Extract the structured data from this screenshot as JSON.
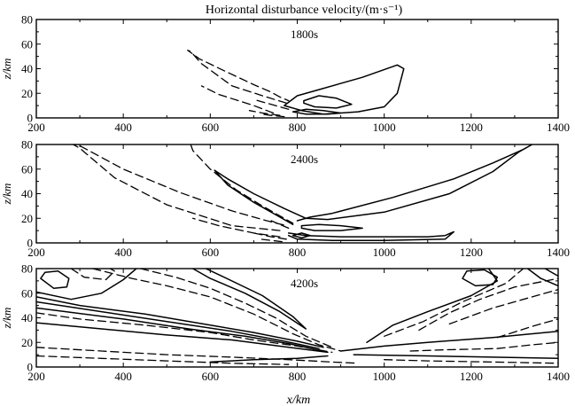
{
  "chart_data": [
    {
      "type": "contour",
      "title": "Horizontal disturbance velocity/(m·s⁻¹)",
      "label": "1800s",
      "xlabel": "",
      "ylabel": "z/km",
      "xlim": [
        200,
        1400
      ],
      "ylim": [
        0,
        80
      ],
      "xticks": [
        200,
        400,
        600,
        800,
        1000,
        1200,
        1400
      ],
      "yticks": [
        0,
        20,
        40,
        60,
        80
      ],
      "solid_contours": [
        [
          [
            770,
            10
          ],
          [
            800,
            18
          ],
          [
            850,
            23
          ],
          [
            950,
            33
          ],
          [
            1030,
            43
          ],
          [
            1045,
            40
          ],
          [
            1030,
            20
          ],
          [
            1000,
            9
          ],
          [
            940,
            5
          ],
          [
            860,
            3
          ],
          [
            810,
            6
          ],
          [
            780,
            9
          ],
          [
            770,
            10
          ]
        ],
        [
          [
            815,
            12
          ],
          [
            840,
            9
          ],
          [
            890,
            8
          ],
          [
            925,
            11
          ],
          [
            890,
            16
          ],
          [
            850,
            18
          ],
          [
            815,
            14
          ],
          [
            815,
            12
          ]
        ],
        [
          [
            790,
            5
          ],
          [
            820,
            3
          ],
          [
            870,
            3
          ],
          [
            900,
            4
          ],
          [
            860,
            6
          ],
          [
            820,
            7
          ],
          [
            790,
            5
          ]
        ]
      ],
      "dashed_contours": [
        [
          [
            775,
            12
          ],
          [
            720,
            18
          ],
          [
            650,
            26
          ],
          [
            580,
            44
          ],
          [
            555,
            54
          ],
          [
            548,
            55
          ],
          [
            575,
            48
          ],
          [
            640,
            37
          ],
          [
            700,
            27
          ],
          [
            740,
            21
          ],
          [
            760,
            17
          ],
          [
            780,
            14
          ]
        ],
        [
          [
            745,
            4
          ],
          [
            700,
            10
          ],
          [
            620,
            19
          ],
          [
            580,
            26
          ]
        ],
        [
          [
            780,
            7
          ],
          [
            750,
            10
          ],
          [
            720,
            13
          ],
          [
            700,
            15
          ]
        ],
        [
          [
            760,
            2
          ],
          [
            720,
            4
          ],
          [
            690,
            6
          ]
        ],
        [
          [
            770,
            1
          ],
          [
            740,
            2
          ],
          [
            720,
            3
          ]
        ]
      ]
    },
    {
      "type": "contour",
      "label": "2400s",
      "xlabel": "",
      "ylabel": "z/km",
      "xlim": [
        200,
        1400
      ],
      "ylim": [
        0,
        80
      ],
      "xticks": [
        200,
        400,
        600,
        800,
        1000,
        1200,
        1400
      ],
      "yticks": [
        0,
        20,
        40,
        60,
        80
      ],
      "solid_contours": [
        [
          [
            790,
            15
          ],
          [
            750,
            23
          ],
          [
            700,
            33
          ],
          [
            640,
            47
          ],
          [
            610,
            59
          ],
          [
            640,
            52
          ],
          [
            700,
            40
          ],
          [
            770,
            28
          ],
          [
            820,
            20
          ],
          [
            870,
            19
          ],
          [
            1000,
            25
          ],
          [
            1150,
            40
          ],
          [
            1250,
            58
          ],
          [
            1310,
            74
          ],
          [
            1340,
            80
          ],
          [
            1320,
            76
          ],
          [
            1250,
            65
          ],
          [
            1160,
            52
          ],
          [
            1020,
            37
          ],
          [
            880,
            24
          ],
          [
            830,
            21
          ],
          [
            800,
            18
          ]
        ],
        [
          [
            810,
            12
          ],
          [
            840,
            10
          ],
          [
            900,
            10
          ],
          [
            950,
            12
          ],
          [
            900,
            14
          ],
          [
            850,
            15
          ],
          [
            810,
            14
          ],
          [
            810,
            12
          ]
        ],
        [
          [
            780,
            8
          ],
          [
            820,
            6
          ],
          [
            900,
            5
          ],
          [
            1000,
            5
          ],
          [
            1100,
            5
          ],
          [
            1140,
            6
          ],
          [
            1160,
            9
          ],
          [
            1140,
            3
          ],
          [
            1000,
            2
          ],
          [
            880,
            2
          ],
          [
            800,
            3
          ],
          [
            780,
            6
          ]
        ],
        [
          [
            790,
            6
          ],
          [
            810,
            4
          ],
          [
            830,
            6
          ],
          [
            810,
            8
          ],
          [
            790,
            6
          ]
        ]
      ],
      "dashed_contours": [
        [
          [
            760,
            10
          ],
          [
            650,
            14
          ],
          [
            500,
            31
          ],
          [
            380,
            53
          ],
          [
            300,
            77
          ],
          [
            285,
            80
          ],
          [
            300,
            79
          ],
          [
            400,
            60
          ],
          [
            530,
            41
          ],
          [
            650,
            26
          ],
          [
            730,
            18
          ],
          [
            775,
            14
          ]
        ],
        [
          [
            555,
            80
          ],
          [
            560,
            75
          ],
          [
            600,
            60
          ],
          [
            660,
            43
          ],
          [
            720,
            30
          ],
          [
            770,
            20
          ],
          [
            790,
            16
          ]
        ],
        [
          [
            760,
            5
          ],
          [
            700,
            8
          ],
          [
            620,
            14
          ],
          [
            560,
            20
          ]
        ],
        [
          [
            775,
            3
          ],
          [
            740,
            5
          ],
          [
            700,
            8
          ]
        ],
        [
          [
            780,
            12
          ],
          [
            760,
            15
          ],
          [
            740,
            18
          ]
        ],
        [
          [
            765,
            1
          ],
          [
            740,
            2
          ],
          [
            715,
            3
          ]
        ]
      ]
    },
    {
      "type": "contour",
      "label": "4200s",
      "xlabel": "x/km",
      "ylabel": "z/km",
      "xlim": [
        200,
        1400
      ],
      "ylim": [
        0,
        80
      ],
      "xticks": [
        200,
        400,
        600,
        800,
        1000,
        1200,
        1400
      ],
      "yticks": [
        0,
        20,
        40,
        60,
        80
      ],
      "solid_contours": [
        [
          [
            210,
            72
          ],
          [
            240,
            64
          ],
          [
            270,
            65
          ],
          [
            275,
            72
          ],
          [
            250,
            78
          ],
          [
            220,
            77
          ],
          [
            210,
            72
          ]
        ],
        [
          [
            200,
            61
          ],
          [
            280,
            55
          ],
          [
            350,
            60
          ],
          [
            400,
            71
          ],
          [
            430,
            80
          ]
        ],
        [
          [
            200,
            57
          ],
          [
            300,
            50
          ],
          [
            450,
            43
          ],
          [
            600,
            34
          ],
          [
            700,
            28
          ],
          [
            800,
            21
          ],
          [
            860,
            16
          ]
        ],
        [
          [
            200,
            53
          ],
          [
            350,
            45
          ],
          [
            500,
            37
          ],
          [
            650,
            29
          ],
          [
            770,
            21
          ],
          [
            850,
            15
          ]
        ],
        [
          [
            200,
            48
          ],
          [
            400,
            39
          ],
          [
            550,
            31
          ],
          [
            680,
            25
          ],
          [
            780,
            19
          ],
          [
            860,
            13
          ]
        ],
        [
          [
            200,
            36
          ],
          [
            350,
            31
          ],
          [
            500,
            26
          ],
          [
            650,
            22
          ],
          [
            780,
            16
          ],
          [
            870,
            12
          ]
        ],
        [
          [
            560,
            80
          ],
          [
            600,
            72
          ],
          [
            680,
            60
          ],
          [
            760,
            45
          ],
          [
            820,
            31
          ],
          [
            790,
            41
          ],
          [
            720,
            58
          ],
          [
            620,
            75
          ],
          [
            590,
            80
          ]
        ],
        [
          [
            900,
            13
          ],
          [
            1000,
            17
          ],
          [
            1100,
            20
          ],
          [
            1250,
            24
          ],
          [
            1400,
            29
          ]
        ],
        [
          [
            930,
            10
          ],
          [
            1100,
            9
          ],
          [
            1250,
            8
          ],
          [
            1400,
            7
          ]
        ],
        [
          [
            960,
            20
          ],
          [
            1020,
            34
          ],
          [
            1100,
            45
          ],
          [
            1200,
            58
          ],
          [
            1260,
            70
          ],
          [
            1240,
            80
          ]
        ],
        [
          [
            1180,
            72
          ],
          [
            1210,
            66
          ],
          [
            1250,
            67
          ],
          [
            1260,
            73
          ],
          [
            1230,
            79
          ],
          [
            1190,
            78
          ],
          [
            1180,
            72
          ]
        ],
        [
          [
            1330,
            80
          ],
          [
            1360,
            72
          ],
          [
            1400,
            66
          ]
        ],
        [
          [
            1370,
            80
          ],
          [
            1390,
            76
          ],
          [
            1400,
            74
          ]
        ],
        [
          [
            600,
            4
          ],
          [
            700,
            6
          ],
          [
            800,
            7
          ],
          [
            870,
            9
          ]
        ]
      ],
      "dashed_contours": [
        [
          [
            280,
            80
          ],
          [
            310,
            73
          ],
          [
            360,
            71
          ],
          [
            380,
            78
          ],
          [
            370,
            80
          ]
        ],
        [
          [
            330,
            80
          ],
          [
            420,
            72
          ],
          [
            500,
            66
          ],
          [
            600,
            57
          ],
          [
            700,
            43
          ],
          [
            790,
            27
          ],
          [
            850,
            18
          ],
          [
            900,
            13
          ]
        ],
        [
          [
            440,
            80
          ],
          [
            520,
            73
          ],
          [
            600,
            64
          ],
          [
            680,
            52
          ],
          [
            750,
            40
          ],
          [
            820,
            25
          ],
          [
            880,
            16
          ]
        ],
        [
          [
            200,
            44
          ],
          [
            300,
            39
          ],
          [
            450,
            34
          ],
          [
            600,
            28
          ],
          [
            700,
            22
          ],
          [
            800,
            17
          ],
          [
            880,
            12
          ]
        ],
        [
          [
            200,
            16
          ],
          [
            350,
            13
          ],
          [
            500,
            10
          ],
          [
            650,
            8
          ],
          [
            780,
            6
          ],
          [
            880,
            4
          ],
          [
            940,
            3
          ]
        ],
        [
          [
            200,
            9
          ],
          [
            350,
            7
          ],
          [
            500,
            5
          ],
          [
            650,
            3
          ],
          [
            780,
            2
          ]
        ],
        [
          [
            1000,
            25
          ],
          [
            1090,
            37
          ],
          [
            1180,
            53
          ],
          [
            1280,
            68
          ],
          [
            1320,
            80
          ]
        ],
        [
          [
            1080,
            30
          ],
          [
            1150,
            44
          ],
          [
            1220,
            55
          ],
          [
            1300,
            65
          ],
          [
            1400,
            72
          ]
        ],
        [
          [
            1150,
            35
          ],
          [
            1250,
            48
          ],
          [
            1350,
            58
          ],
          [
            1400,
            63
          ]
        ],
        [
          [
            1260,
            24
          ],
          [
            1340,
            33
          ],
          [
            1400,
            39
          ]
        ],
        [
          [
            1000,
            6
          ],
          [
            1100,
            5
          ],
          [
            1250,
            4
          ],
          [
            1400,
            3
          ]
        ],
        [
          [
            1060,
            13
          ],
          [
            1140,
            14
          ],
          [
            1260,
            15
          ],
          [
            1340,
            18
          ],
          [
            1400,
            20
          ]
        ]
      ]
    }
  ]
}
